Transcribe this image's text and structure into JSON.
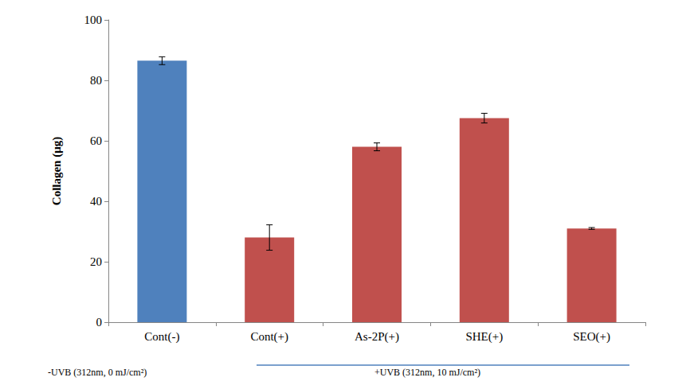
{
  "chart_data": {
    "type": "bar",
    "categories": [
      "Cont(-)",
      "Cont(+)",
      "As-2P(+)",
      "SHE(+)",
      "SEO(+)"
    ],
    "values": [
      86.5,
      28,
      58,
      67.5,
      31
    ],
    "errors": [
      1.3,
      4.2,
      1.3,
      1.6,
      0.3
    ],
    "colors": [
      "#4f81bd",
      "#c0504d",
      "#c0504d",
      "#c0504d",
      "#c0504d"
    ],
    "ylabel": "Collagen (μg)",
    "ylim": [
      0,
      100
    ],
    "yticks": [
      0,
      20,
      40,
      60,
      80,
      100
    ],
    "grid": false,
    "annotations": [
      "-UVB (312nm, 0 mJ/cm²)",
      "+UVB (312nm, 10 mJ/cm²)"
    ]
  }
}
